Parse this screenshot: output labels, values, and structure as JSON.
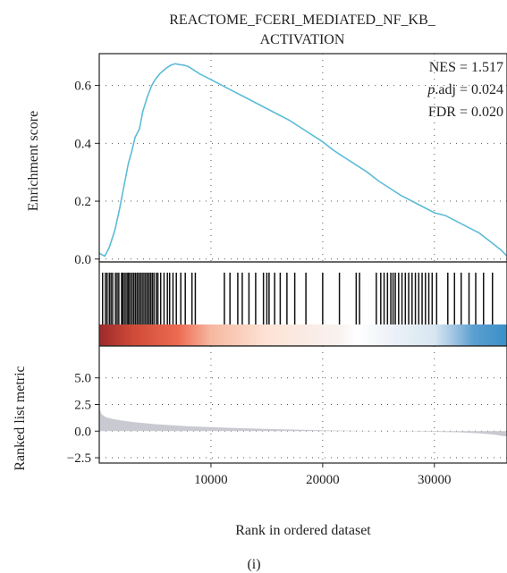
{
  "chart_data": {
    "type": "line",
    "title_line1": "REACTOME_FCERI_MEDIATED_NF_KB_",
    "title_line2": "ACTIVATION",
    "stats": {
      "nes": "NES = 1.517",
      "padj_prefix": "p",
      "padj_rest": ".adj = 0.024",
      "fdr": "FDR = 0.020"
    },
    "xlabel": "Rank in ordered dataset",
    "xlim": [
      0,
      36500
    ],
    "xticks": [
      10000,
      20000,
      30000
    ],
    "xtick_labels": [
      "10000",
      "20000",
      "30000"
    ],
    "enrichment": {
      "ylabel": "Enrichment score",
      "ylim": [
        -0.01,
        0.71
      ],
      "yticks": [
        0.0,
        0.2,
        0.4,
        0.6
      ],
      "ytick_labels": [
        "0.0",
        "0.2",
        "0.4",
        "0.6"
      ],
      "color": "#5bbcd6",
      "x": [
        0,
        500,
        900,
        1400,
        1800,
        2200,
        2600,
        2900,
        3200,
        3600,
        3900,
        4300,
        4700,
        5000,
        5400,
        5700,
        6000,
        6400,
        6800,
        7200,
        7600,
        8000,
        9000,
        10000,
        11000,
        12000,
        13000,
        14000,
        15000,
        16000,
        17000,
        18000,
        19000,
        20000,
        21000,
        22000,
        23000,
        24000,
        25000,
        26000,
        27000,
        28000,
        29000,
        30000,
        31000,
        32000,
        33000,
        34000,
        35000,
        36000,
        36500
      ],
      "y": [
        0.02,
        0.01,
        0.04,
        0.1,
        0.17,
        0.25,
        0.33,
        0.37,
        0.42,
        0.45,
        0.51,
        0.56,
        0.6,
        0.62,
        0.64,
        0.65,
        0.66,
        0.67,
        0.675,
        0.672,
        0.67,
        0.665,
        0.64,
        0.62,
        0.6,
        0.58,
        0.56,
        0.54,
        0.52,
        0.5,
        0.48,
        0.455,
        0.43,
        0.405,
        0.375,
        0.35,
        0.325,
        0.3,
        0.27,
        0.245,
        0.22,
        0.2,
        0.18,
        0.16,
        0.15,
        0.13,
        0.11,
        0.09,
        0.06,
        0.03,
        0.01
      ]
    },
    "hits": [
      300,
      550,
      700,
      900,
      1050,
      1200,
      1450,
      1600,
      1750,
      2000,
      2100,
      2250,
      2400,
      2550,
      2650,
      2800,
      2950,
      3100,
      3250,
      3400,
      3550,
      3700,
      3850,
      4000,
      4150,
      4300,
      4450,
      4600,
      4750,
      4900,
      5100,
      5250,
      5500,
      5800,
      6100,
      6300,
      6600,
      6900,
      7300,
      7700,
      8300,
      8600,
      11200,
      11700,
      12400,
      12800,
      13400,
      14000,
      14700,
      15000,
      15200,
      15700,
      16200,
      16800,
      17500,
      18500,
      20000,
      21500,
      23000,
      23300,
      24800,
      25200,
      25500,
      25800,
      26100,
      26300,
      26500,
      26800,
      27100,
      27400,
      27700,
      28000,
      28300,
      28600,
      28900,
      29200,
      29500,
      29800,
      30200,
      31200,
      31800,
      32400,
      33100,
      33700,
      34400,
      35200
    ],
    "color_bar": {
      "stops": [
        {
          "x": 0,
          "color": "#9c2a2b"
        },
        {
          "x": 3000,
          "color": "#cf4a38"
        },
        {
          "x": 7000,
          "color": "#ec6a50"
        },
        {
          "x": 10000,
          "color": "#f6b8a0"
        },
        {
          "x": 15000,
          "color": "#fde3d6"
        },
        {
          "x": 21500,
          "color": "#f8f2f0"
        },
        {
          "x": 23000,
          "color": "#ffffff"
        },
        {
          "x": 26000,
          "color": "#eef2f8"
        },
        {
          "x": 30000,
          "color": "#d8e6f2"
        },
        {
          "x": 31500,
          "color": "#a8c9e4"
        },
        {
          "x": 33500,
          "color": "#5b9fd0"
        },
        {
          "x": 36500,
          "color": "#3a8fc8"
        }
      ]
    },
    "ranked": {
      "ylabel": "Ranked list metric",
      "ylim": [
        -3.0,
        8.0
      ],
      "yticks": [
        -2.5,
        0.0,
        2.5,
        5.0
      ],
      "ytick_labels": [
        "−2.5",
        "0.0",
        "2.5",
        "5.0"
      ],
      "fill": "#c9c9d1",
      "x": [
        0,
        200,
        600,
        1200,
        2000,
        3000,
        5000,
        8000,
        12000,
        16000,
        20000,
        24000,
        28000,
        32000,
        34000,
        35500,
        36000,
        36500
      ],
      "y": [
        2.2,
        1.6,
        1.3,
        1.15,
        1.0,
        0.85,
        0.65,
        0.45,
        0.3,
        0.18,
        0.08,
        0.02,
        -0.03,
        -0.1,
        -0.2,
        -0.35,
        -0.45,
        -0.5
      ]
    },
    "grid": true
  },
  "caption": "(i)"
}
